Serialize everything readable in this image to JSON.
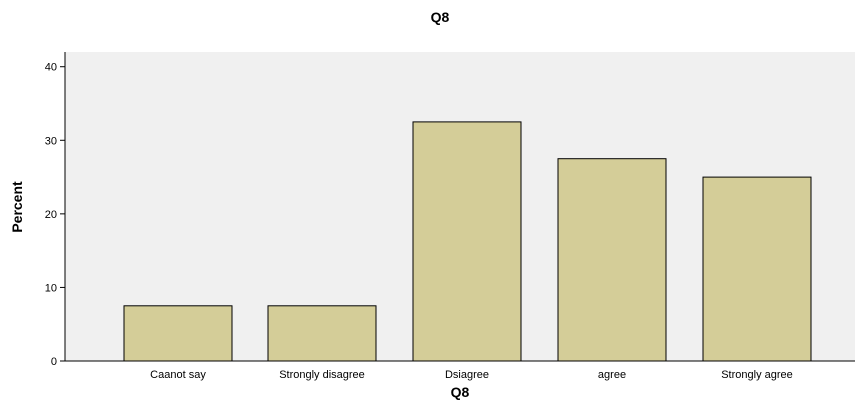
{
  "chart_data": {
    "type": "bar",
    "title": "Q8",
    "xlabel": "Q8",
    "ylabel": "Percent",
    "categories": [
      "Caanot say",
      "Strongly disagree",
      "Dsiagree",
      "agree",
      "Strongly agree"
    ],
    "values": [
      7.5,
      7.5,
      32.5,
      27.5,
      25.0
    ],
    "ylim": [
      0,
      42
    ],
    "yticks": [
      0,
      10,
      20,
      30,
      40
    ],
    "grid": false,
    "legend": "none"
  },
  "colors": {
    "bar_fill": "#d4cd98",
    "bar_stroke": "#000000",
    "plot_background": "#f0f0f0",
    "axis": "#000000"
  }
}
